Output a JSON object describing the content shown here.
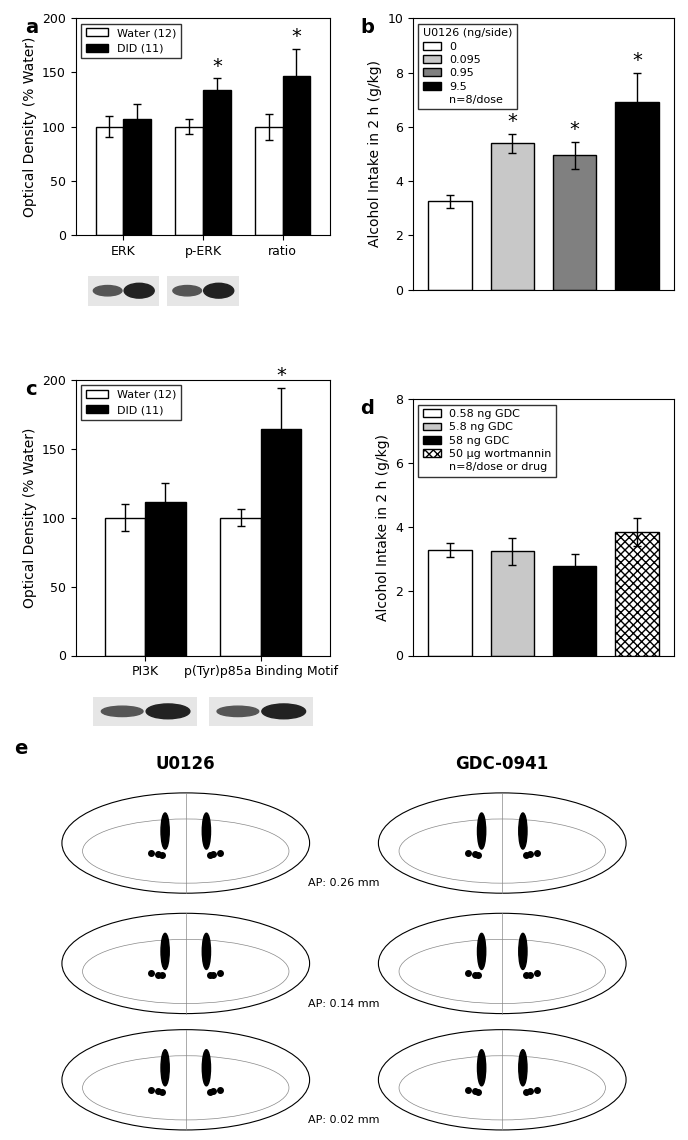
{
  "chart_data": [
    {
      "type": "grouped_bar",
      "panel_label": "a",
      "y_label": "Optical Density (% Water)",
      "categories": [
        "ERK",
        "p-ERK",
        "ratio"
      ],
      "series": [
        {
          "name": "Water (12)",
          "color": "#ffffff",
          "values": [
            100,
            100,
            100
          ],
          "errors": [
            10,
            7,
            12
          ]
        },
        {
          "name": "DID (11)",
          "color": "#000000",
          "values": [
            107,
            134,
            147
          ],
          "errors": [
            14,
            11,
            25
          ]
        }
      ],
      "annotations": [
        {
          "text": "*",
          "category": "p-ERK",
          "series": "DID (11)"
        },
        {
          "text": "*",
          "category": "ratio",
          "series": "DID (11)"
        }
      ],
      "blots": [
        "ERK",
        "p-ERK"
      ],
      "ylim": [
        0,
        200
      ],
      "yticks": [
        0,
        50,
        100,
        150,
        200
      ],
      "legend": "upper left"
    },
    {
      "type": "bar",
      "panel_label": "b",
      "y_label": "Alcohol Intake in 2 h (g/kg)",
      "legend_title": "U0126 (ng/side)",
      "note": "n=8/dose",
      "categories": [
        "0",
        "0.095",
        "0.95",
        "9.5"
      ],
      "values": [
        3.25,
        5.4,
        4.95,
        6.9
      ],
      "errors": [
        0.25,
        0.35,
        0.5,
        1.1
      ],
      "colors": [
        "#ffffff",
        "#c8c8c8",
        "#808080",
        "#000000"
      ],
      "annotations": [
        {
          "text": "*",
          "category": "0.095"
        },
        {
          "text": "*",
          "category": "0.95"
        },
        {
          "text": "*",
          "category": "9.5"
        }
      ],
      "ylim": [
        0,
        10
      ],
      "yticks": [
        0,
        2,
        4,
        6,
        8,
        10
      ],
      "legend": "upper left",
      "tick_labels": "y"
    },
    {
      "type": "grouped_bar",
      "panel_label": "c",
      "y_label": "Optical Density (% Water)",
      "categories": [
        "PI3K",
        "p(Tyr)p85a Binding Motif"
      ],
      "series": [
        {
          "name": "Water (12)",
          "color": "#ffffff",
          "values": [
            100,
            100
          ],
          "errors": [
            10,
            6
          ]
        },
        {
          "name": "DID (11)",
          "color": "#000000",
          "values": [
            111,
            164
          ],
          "errors": [
            14,
            30
          ]
        }
      ],
      "annotations": [
        {
          "text": "*",
          "category": "p(Tyr)p85a Binding Motif",
          "series": "DID (11)"
        }
      ],
      "blots": [
        "PI3K",
        "p(Tyr)p85a Binding Motif"
      ],
      "ylim": [
        0,
        200
      ],
      "yticks": [
        0,
        50,
        100,
        150,
        200
      ],
      "legend": "upper left"
    },
    {
      "type": "bar",
      "panel_label": "d",
      "y_label": "Alcohol Intake in 2 h (g/kg)",
      "note": "n=8/dose or drug",
      "categories": [
        "0.58 ng GDC",
        "5.8 ng GDC",
        "58 ng GDC",
        "50 μg wortmannin"
      ],
      "values": [
        3.3,
        3.25,
        2.8,
        3.85
      ],
      "errors": [
        0.22,
        0.42,
        0.38,
        0.45
      ],
      "colors": [
        "#ffffff",
        "#c8c8c8",
        "#000000",
        "#ffffff"
      ],
      "ylim": [
        0,
        8
      ],
      "yticks": [
        0,
        2,
        4,
        6,
        8
      ],
      "legend": "upper left",
      "tick_labels": "y"
    }
  ],
  "diagram": {
    "panel_label": "e",
    "columns": [
      "U0126",
      "GDC-0941"
    ],
    "sections": [
      "AP: 0.26 mm",
      "AP: 0.14 mm",
      "AP: 0.02 mm"
    ]
  }
}
